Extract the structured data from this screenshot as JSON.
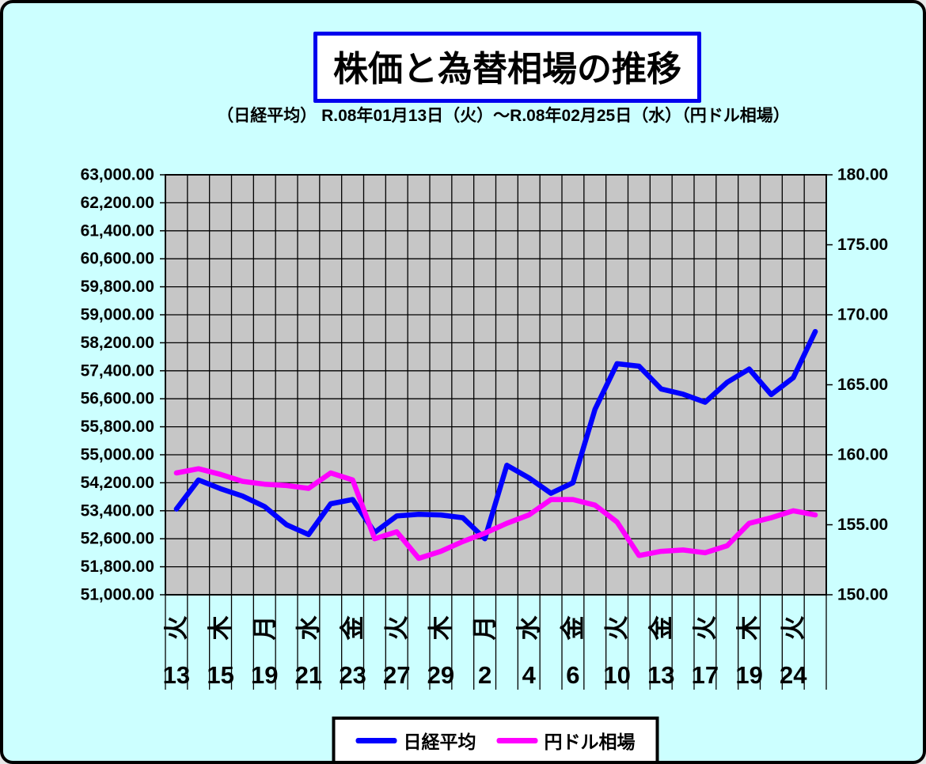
{
  "page": {
    "background_color": "#CCFFFF",
    "frame_border_color": "#000000"
  },
  "header": {
    "title": "株価と為替相場の推移",
    "title_border_color": "#0000EE",
    "subtitle": "（日経平均） R.08年01月13日（火）～R.08年02月25日（水）（円ドル相場）"
  },
  "legend": {
    "items": [
      {
        "label": "日経平均",
        "color": "#0000FF"
      },
      {
        "label": "円ドル相場",
        "color": "#FF00FF"
      }
    ]
  },
  "chart_data": {
    "type": "line",
    "plot": {
      "background": "#C6C6C6",
      "gridline_color": "#000000",
      "grid": "on",
      "n_points": 30
    },
    "left_axis": {
      "min": 51000,
      "max": 63000,
      "step": 800,
      "labels": [
        "63,000.00",
        "62,200.00",
        "61,400.00",
        "60,600.00",
        "59,800.00",
        "59,000.00",
        "58,200.00",
        "57,400.00",
        "56,600.00",
        "55,800.00",
        "55,000.00",
        "54,200.00",
        "53,400.00",
        "52,600.00",
        "51,800.00",
        "51,000.00"
      ]
    },
    "right_axis": {
      "min": 150,
      "max": 180,
      "step": 5,
      "labels": [
        "180.00",
        "175.00",
        "170.00",
        "165.00",
        "160.00",
        "155.00",
        "150.00"
      ]
    },
    "x_labels": [
      {
        "day": "火",
        "date": "13"
      },
      {
        "day": "木",
        "date": "15"
      },
      {
        "day": "月",
        "date": "19"
      },
      {
        "day": "水",
        "date": "21"
      },
      {
        "day": "金",
        "date": "23"
      },
      {
        "day": "火",
        "date": "27"
      },
      {
        "day": "木",
        "date": "29"
      },
      {
        "day": "月",
        "date": "2"
      },
      {
        "day": "水",
        "date": "4"
      },
      {
        "day": "金",
        "date": "6"
      },
      {
        "day": "火",
        "date": "10"
      },
      {
        "day": "金",
        "date": "13"
      },
      {
        "day": "火",
        "date": "17"
      },
      {
        "day": "木",
        "date": "19"
      },
      {
        "day": "火",
        "date": "24"
      }
    ],
    "series": [
      {
        "name": "日経平均",
        "axis": "left",
        "color": "#0000FF",
        "values": [
          53450,
          54280,
          54030,
          53820,
          53520,
          53000,
          52720,
          53600,
          53720,
          52780,
          53250,
          53300,
          53280,
          53200,
          52600,
          54700,
          54340,
          53900,
          54200,
          56300,
          57600,
          57530,
          56880,
          56730,
          56500,
          57070,
          57450,
          56720,
          57200,
          58520
        ]
      },
      {
        "name": "円ドル相場",
        "axis": "right",
        "color": "#FF00FF",
        "values": [
          158.7,
          159.0,
          158.6,
          158.1,
          157.9,
          157.8,
          157.6,
          158.7,
          158.2,
          154.0,
          154.5,
          152.6,
          153.1,
          153.8,
          154.4,
          155.1,
          155.7,
          156.8,
          156.8,
          156.4,
          155.2,
          152.8,
          153.1,
          153.2,
          153.0,
          153.5,
          155.1,
          155.5,
          156.0,
          155.7
        ]
      }
    ]
  }
}
